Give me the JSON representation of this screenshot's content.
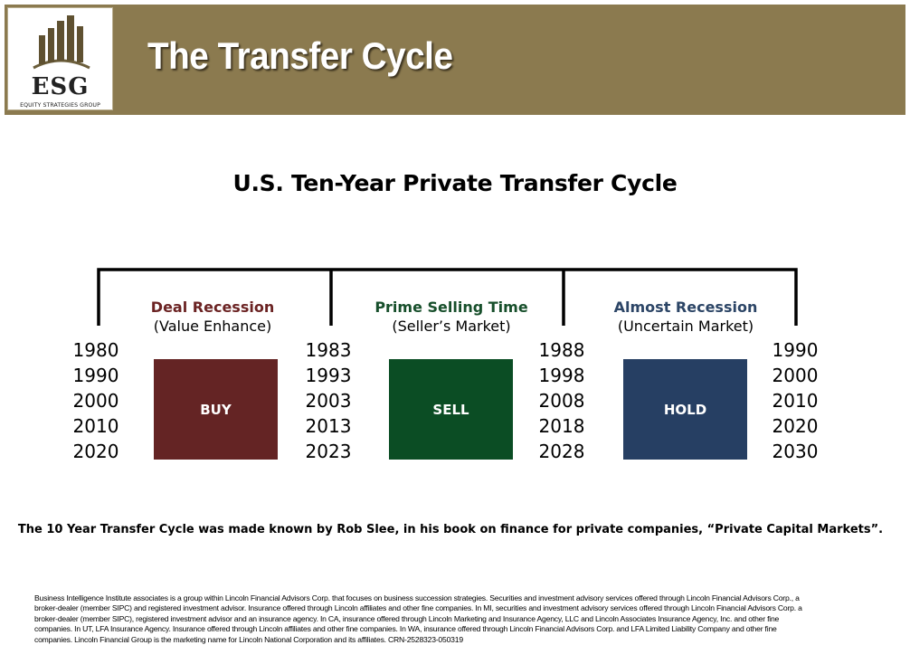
{
  "header": {
    "title": "The Transfer Cycle",
    "background_color": "#8b7a4f",
    "logo": {
      "name": "ESG",
      "tagline": "EQUITY STRATEGIES GROUP"
    }
  },
  "diagram": {
    "title": "U.S. Ten-Year Private Transfer Cycle",
    "phases": [
      {
        "label": "Deal Recession",
        "sub": "(Value Enhance)",
        "action": "BUY",
        "label_color": "#6b2323",
        "box_color": "#642424"
      },
      {
        "label": "Prime Selling Time",
        "sub": "(Seller’s Market)",
        "action": "SELL",
        "label_color": "#174f2b",
        "box_color": "#0b4d24"
      },
      {
        "label": "Almost Recession",
        "sub": "(Uncertain Market)",
        "action": "HOLD",
        "label_color": "#2c4566",
        "box_color": "#263f63"
      }
    ],
    "year_columns": [
      [
        "1980",
        "1990",
        "2000",
        "2010",
        "2020"
      ],
      [
        "1983",
        "1993",
        "2003",
        "2013",
        "2023"
      ],
      [
        "1988",
        "1998",
        "2008",
        "2018",
        "2028"
      ],
      [
        "1990",
        "2000",
        "2010",
        "2020",
        "2030"
      ]
    ]
  },
  "note": "The 10 Year Transfer Cycle was made known by Rob Slee, in his book on finance for private companies, “Private Capital Markets”.",
  "disclaimer": [
    "Business Intelligence Institute associates is a group within Lincoln Financial Advisors Corp. that focuses on business succession strategies. Securities and investment advisory services offered through Lincoln Financial Advisors Corp., a",
    "broker-dealer (member SIPC) and  registered investment advisor. Insurance offered through Lincoln affiliates and other fine companies. In MI, securities and investment advisory services offered through Lincoln Financial Advisors Corp. a",
    "broker-dealer (member SIPC),  registered investment advisor and an insurance agency. In CA, insurance offered through Lincoln Marketing and Insurance Agency, LLC and Lincoln Associates Insurance Agency, Inc. and other fine",
    "companies. In UT, LFA Insurance  Agency. Insurance offered through Lincoln affiliates and other fine companies. In WA, insurance offered through Lincoln Financial Advisors Corp. and LFA Limited Liability Company and other fine",
    "companies. Lincoln Financial Group is the  marketing name for Lincoln National Corporation and its affiliates. CRN-2528323-050319"
  ]
}
